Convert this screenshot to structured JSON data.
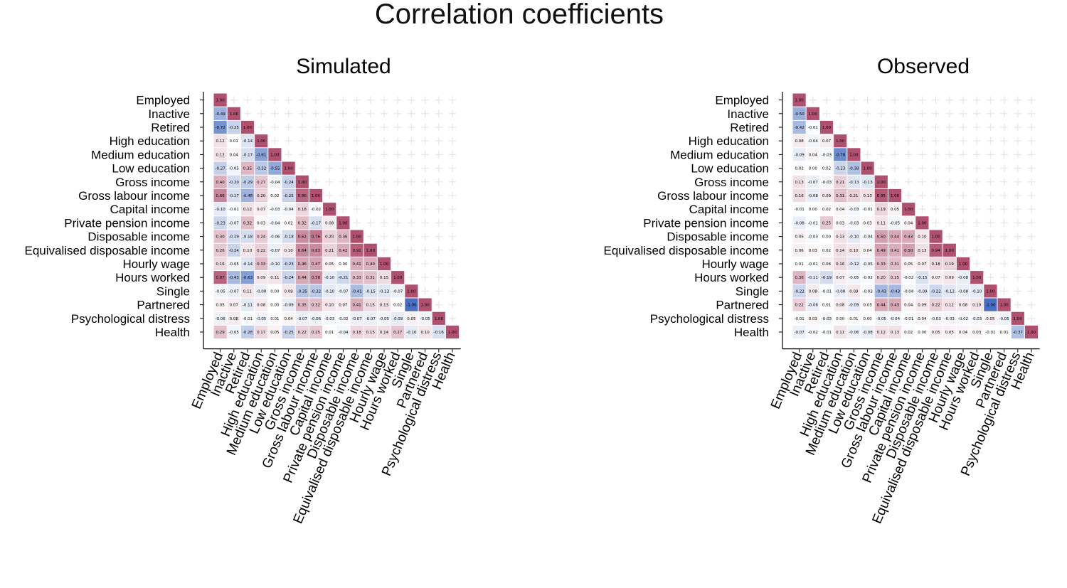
{
  "title": "Correlation coefficients",
  "chart_data": [
    {
      "type": "heatmap",
      "title": "Simulated",
      "variables": [
        "Employed",
        "Inactive",
        "Retired",
        "High education",
        "Medium education",
        "Low education",
        "Gross income",
        "Gross labour income",
        "Capital income",
        "Private pension income",
        "Disposable income",
        "Equivalised disposable income",
        "Hourly wage",
        "Hours worked",
        "Single",
        "Partnered",
        "Psychological distress",
        "Health"
      ],
      "matrix": [
        [
          1.0
        ],
        [
          -0.49,
          1.0
        ],
        [
          -0.72,
          -0.25,
          1.0
        ],
        [
          0.12,
          0.01,
          -0.14,
          1.0
        ],
        [
          0.12,
          0.04,
          -0.17,
          -0.61,
          1.0
        ],
        [
          -0.27,
          -0.05,
          0.35,
          -0.32,
          -0.55,
          1.0
        ],
        [
          0.4,
          -0.2,
          -0.29,
          0.27,
          -0.04,
          -0.24,
          1.0
        ],
        [
          0.66,
          -0.17,
          -0.48,
          0.2,
          0.02,
          -0.25,
          0.86,
          1.0
        ],
        [
          -0.1,
          -0.01,
          0.12,
          0.07,
          -0.03,
          -0.04,
          0.18,
          -0.02,
          1.0
        ],
        [
          -0.23,
          -0.07,
          0.32,
          0.03,
          -0.04,
          0.02,
          0.32,
          -0.17,
          0.08,
          1.0
        ],
        [
          0.3,
          -0.19,
          -0.18,
          0.24,
          -0.06,
          -0.18,
          0.62,
          0.76,
          0.2,
          0.36,
          1.0
        ],
        [
          0.26,
          -0.24,
          0.1,
          0.22,
          -0.07,
          0.1,
          0.64,
          0.63,
          0.21,
          0.42,
          0.91,
          1.0
        ],
        [
          0.16,
          -0.05,
          -0.14,
          0.33,
          -0.1,
          -0.23,
          0.46,
          0.47,
          0.05,
          0.0,
          0.41,
          0.4,
          1.0
        ],
        [
          0.87,
          -0.43,
          -0.63,
          0.09,
          0.11,
          -0.24,
          0.44,
          0.58,
          -0.1,
          -0.21,
          0.33,
          0.31,
          0.15,
          1.0
        ],
        [
          -0.05,
          -0.07,
          0.11,
          -0.08,
          -0.0,
          0.09,
          -0.35,
          -0.32,
          -0.1,
          -0.07,
          -0.41,
          -0.15,
          -0.13,
          -0.07,
          1.0
        ],
        [
          0.05,
          0.07,
          -0.11,
          0.08,
          0.0,
          -0.09,
          0.35,
          0.32,
          0.1,
          0.07,
          0.41,
          0.15,
          0.13,
          0.02,
          -1.0,
          1.0
        ],
        [
          -0.06,
          0.08,
          -0.01,
          -0.05,
          0.01,
          0.04,
          -0.07,
          -0.06,
          -0.03,
          -0.02,
          -0.07,
          -0.07,
          -0.05,
          -0.09,
          0.05,
          -0.05,
          1.0
        ],
        [
          0.29,
          -0.05,
          -0.28,
          0.17,
          0.05,
          -0.25,
          0.22,
          0.25,
          0.01,
          -0.04,
          0.18,
          0.15,
          0.14,
          0.27,
          -0.1,
          0.1,
          -0.16,
          1.0
        ]
      ],
      "range": [
        -1,
        1
      ],
      "grid": true
    },
    {
      "type": "heatmap",
      "title": "Observed",
      "variables": [
        "Employed",
        "Inactive",
        "Retired",
        "High education",
        "Medium education",
        "Low education",
        "Gross income",
        "Gross labour income",
        "Capital income",
        "Private pension income",
        "Disposable income",
        "Equivalised disposable income",
        "Hourly wage",
        "Hours worked",
        "Single",
        "Partnered",
        "Psychological distress",
        "Health"
      ],
      "matrix": [
        [
          1.0
        ],
        [
          -0.5,
          1.0
        ],
        [
          -0.42,
          -0.01,
          1.0
        ],
        [
          0.08,
          -0.04,
          0.07,
          1.0
        ],
        [
          -0.09,
          0.04,
          -0.03,
          -0.78,
          1.0
        ],
        [
          0.02,
          -0.0,
          0.02,
          -0.23,
          -0.38,
          1.0
        ],
        [
          0.13,
          -0.07,
          -0.03,
          0.21,
          -0.13,
          -0.13,
          1.0
        ],
        [
          0.16,
          -0.08,
          0.09,
          0.31,
          0.21,
          0.13,
          0.95,
          1.0
        ],
        [
          -0.01,
          0.0,
          0.02,
          0.04,
          -0.03,
          -0.01,
          0.19,
          0.05,
          1.0
        ],
        [
          -0.08,
          -0.01,
          0.25,
          0.03,
          -0.03,
          0.03,
          0.11,
          -0.05,
          0.04,
          1.0
        ],
        [
          0.05,
          -0.03,
          0.0,
          0.13,
          -0.1,
          -0.04,
          0.5,
          0.44,
          0.43,
          0.1,
          1.0
        ],
        [
          0.06,
          0.03,
          0.02,
          0.14,
          0.1,
          0.04,
          0.49,
          0.41,
          0.5,
          0.13,
          0.94,
          1.0
        ],
        [
          0.01,
          -0.01,
          0.06,
          0.16,
          -0.12,
          -0.05,
          0.33,
          0.31,
          0.05,
          0.07,
          0.18,
          0.19,
          1.0
        ],
        [
          0.36,
          -0.11,
          -0.19,
          0.07,
          -0.05,
          -0.02,
          0.2,
          0.25,
          -0.02,
          -0.15,
          0.07,
          0.09,
          -0.08,
          1.0
        ],
        [
          -0.22,
          0.08,
          -0.01,
          -0.08,
          0.09,
          -0.03,
          -0.43,
          -0.43,
          -0.04,
          -0.09,
          -0.22,
          -0.12,
          -0.08,
          -0.1,
          1.0
        ],
        [
          0.22,
          -0.08,
          0.01,
          0.08,
          -0.09,
          0.03,
          0.44,
          0.43,
          0.04,
          0.09,
          0.22,
          0.12,
          0.08,
          0.1,
          -1.0,
          1.0
        ],
        [
          -0.01,
          0.03,
          -0.03,
          0.0,
          0.01,
          0.0,
          -0.05,
          -0.04,
          -0.01,
          0.04,
          -0.03,
          -0.03,
          -0.02,
          -0.03,
          0.05,
          -0.05,
          1.0
        ],
        [
          -0.07,
          -0.02,
          -0.01,
          0.11,
          -0.06,
          -0.08,
          0.12,
          0.13,
          0.02,
          -0.0,
          0.05,
          0.05,
          0.04,
          0.03,
          -0.01,
          0.01,
          -0.37,
          1.0
        ]
      ],
      "range": [
        -1,
        1
      ],
      "grid": true
    }
  ],
  "colors": {
    "positive": "#b0506f",
    "negative": "#4a6fc0",
    "neutral": "#ffffff",
    "grid_mark": "#e6e6e6",
    "axis": "#000000"
  }
}
